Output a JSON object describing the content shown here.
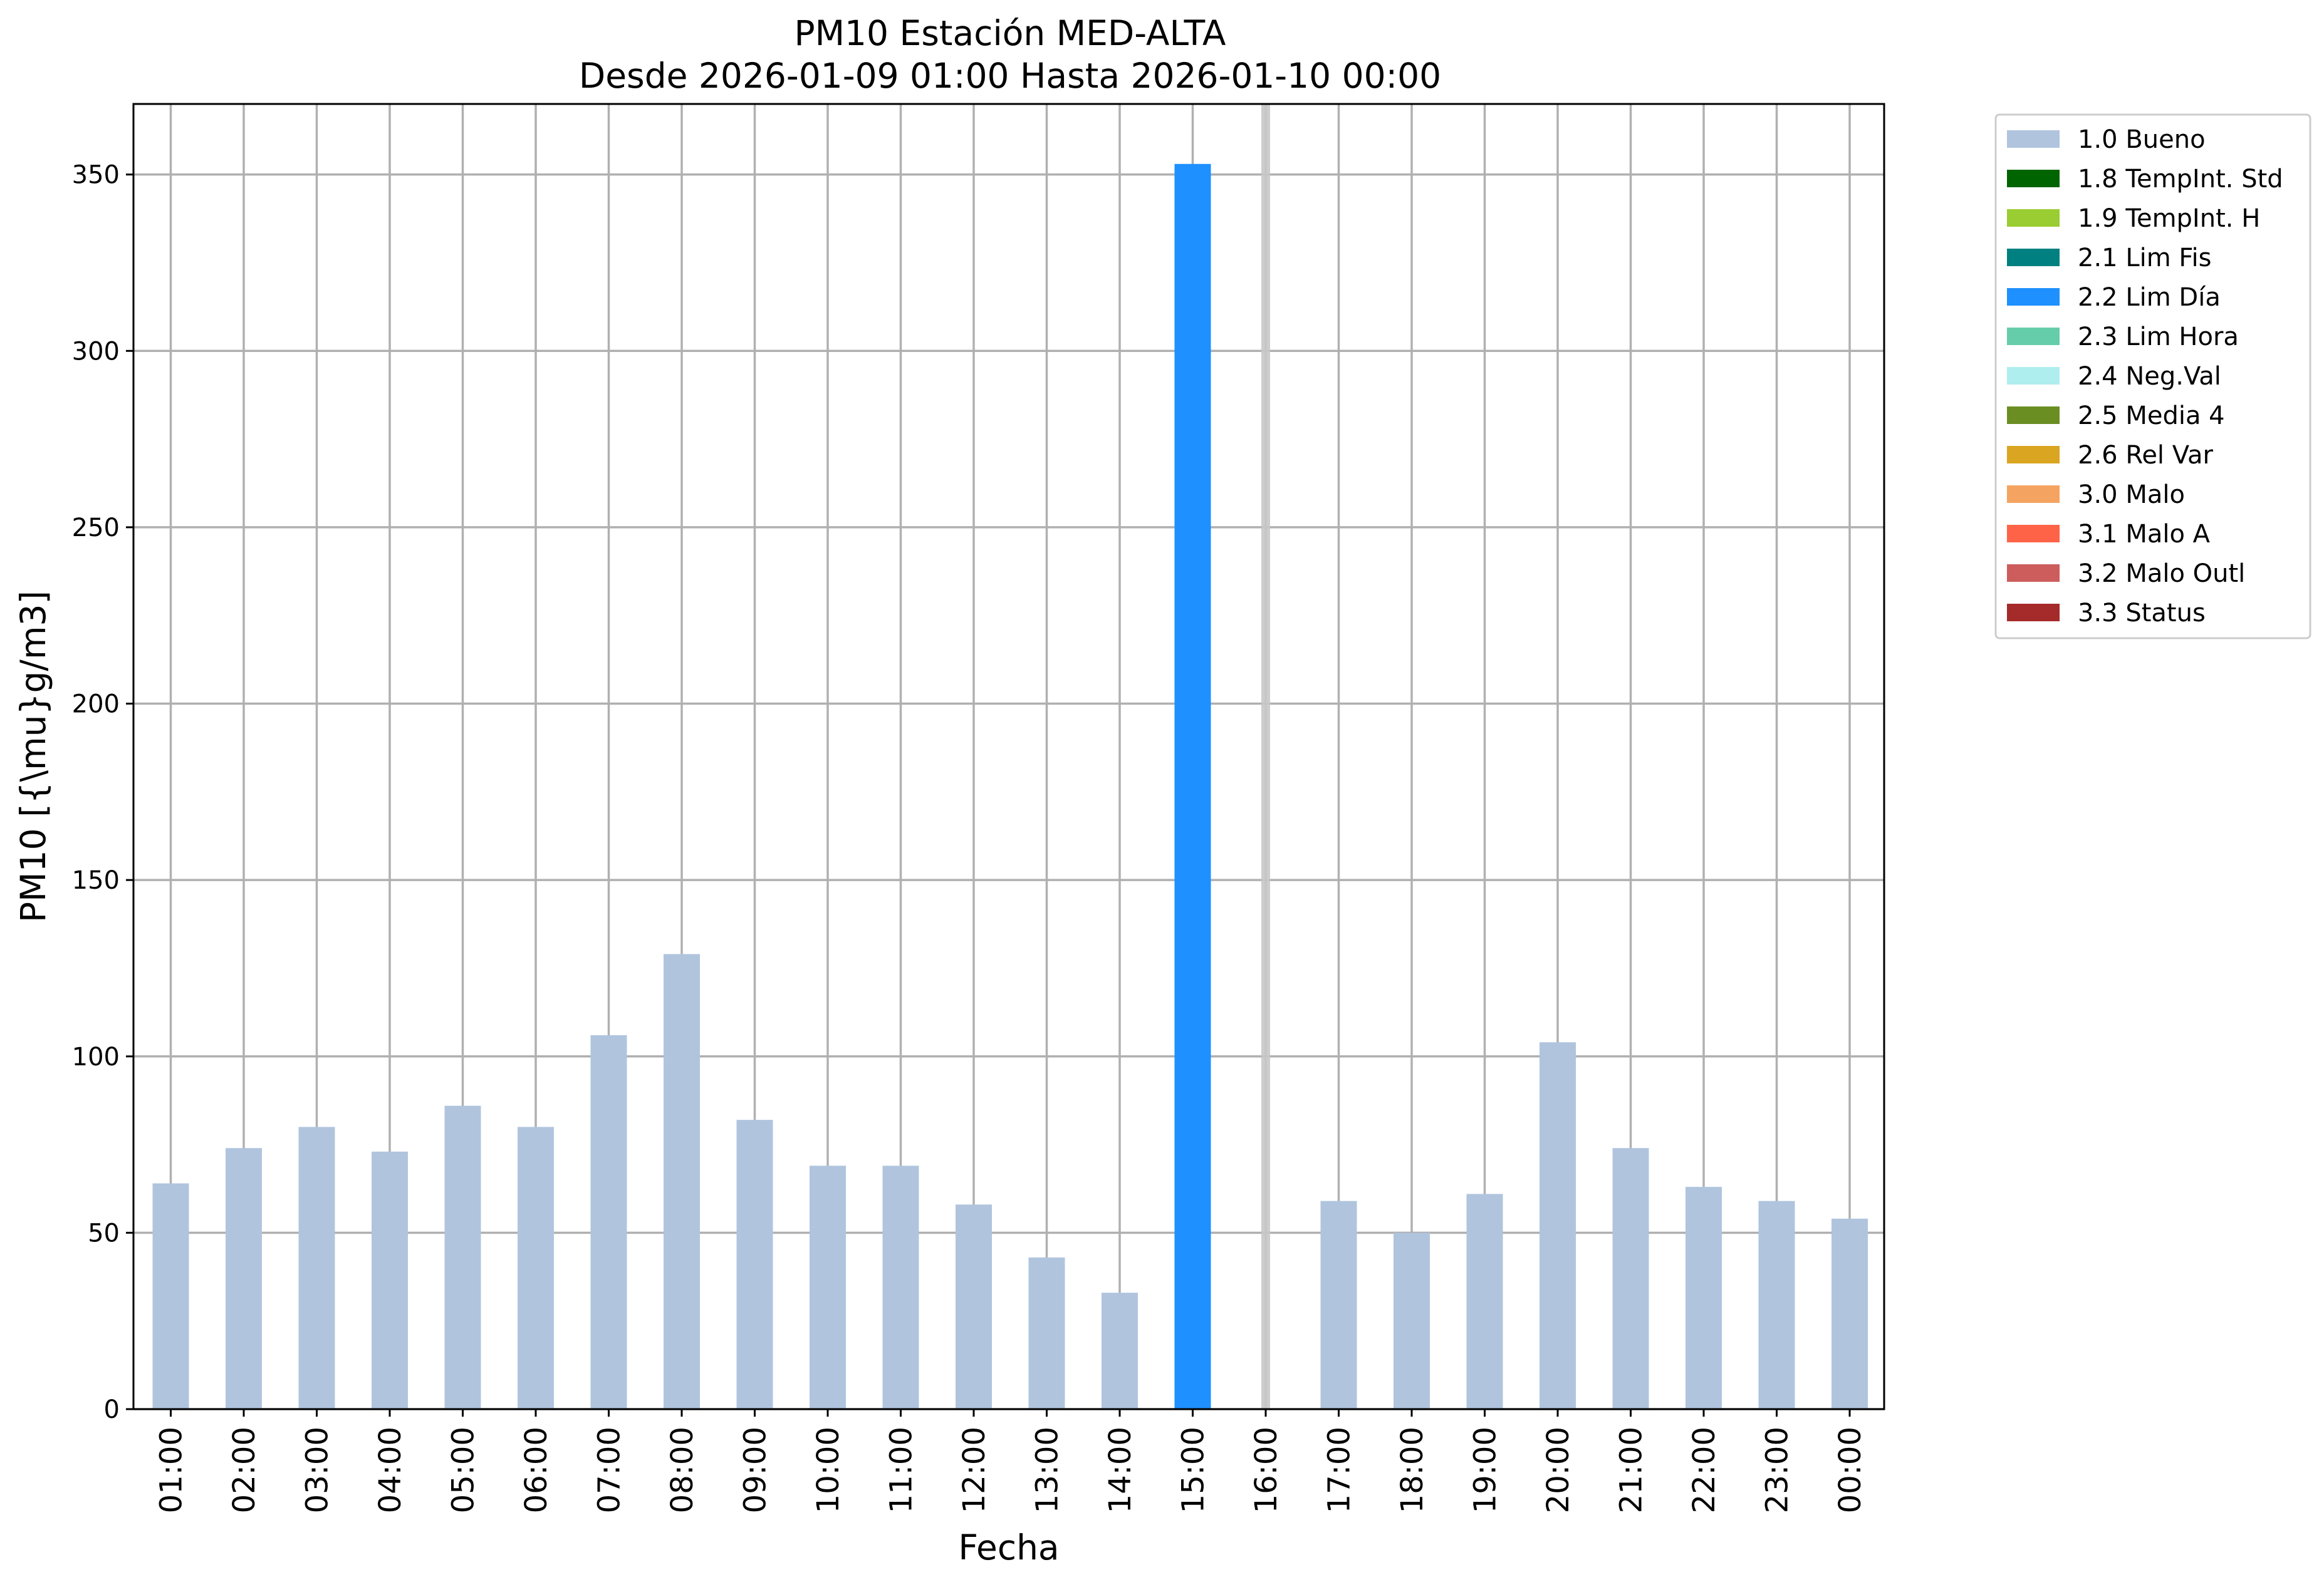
{
  "chart_data": {
    "type": "bar",
    "title": "PM10 Estación MED-ALTA",
    "subtitle": "Desde 2026-01-09 01:00 Hasta 2026-01-10 00:00",
    "xlabel": "Fecha",
    "ylabel": "PM10 [{\\mu}g/m3]",
    "ylim": [
      0,
      370
    ],
    "yticks": [
      0,
      50,
      100,
      150,
      200,
      250,
      300,
      350
    ],
    "grid": true,
    "legend_position": "outside-top-right",
    "categories": [
      "01:00",
      "02:00",
      "03:00",
      "04:00",
      "05:00",
      "06:00",
      "07:00",
      "08:00",
      "09:00",
      "10:00",
      "11:00",
      "12:00",
      "13:00",
      "14:00",
      "15:00",
      "16:00",
      "17:00",
      "18:00",
      "19:00",
      "20:00",
      "21:00",
      "22:00",
      "23:00",
      "00:00"
    ],
    "values": [
      64,
      74,
      80,
      73,
      86,
      80,
      106,
      129,
      82,
      69,
      69,
      58,
      43,
      33,
      353,
      null,
      59,
      50,
      61,
      104,
      74,
      63,
      59,
      54
    ],
    "bar_flags": [
      "1.0 Bueno",
      "1.0 Bueno",
      "1.0 Bueno",
      "1.0 Bueno",
      "1.0 Bueno",
      "1.0 Bueno",
      "1.0 Bueno",
      "1.0 Bueno",
      "1.0 Bueno",
      "1.0 Bueno",
      "1.0 Bueno",
      "1.0 Bueno",
      "1.0 Bueno",
      "1.0 Bueno",
      "2.2 Lim Día",
      null,
      "1.0 Bueno",
      "1.0 Bueno",
      "1.0 Bueno",
      "1.0 Bueno",
      "1.0 Bueno",
      "1.0 Bueno",
      "1.0 Bueno",
      "1.0 Bueno"
    ],
    "missing_marker_category": "16:00",
    "missing_marker_color": "#c8c8c8",
    "legend": [
      {
        "label": "1.0 Bueno",
        "color": "#b0c4de"
      },
      {
        "label": "1.8 TempInt. Std",
        "color": "#006400"
      },
      {
        "label": "1.9 TempInt. H",
        "color": "#9acd32"
      },
      {
        "label": "2.1 Lim Fis",
        "color": "#008080"
      },
      {
        "label": "2.2 Lim Día",
        "color": "#1e90ff"
      },
      {
        "label": "2.3 Lim Hora",
        "color": "#66cdaa"
      },
      {
        "label": "2.4 Neg.Val",
        "color": "#afeeee"
      },
      {
        "label": "2.5 Media 4",
        "color": "#6b8e23"
      },
      {
        "label": "2.6 Rel Var",
        "color": "#daa520"
      },
      {
        "label": "3.0 Malo",
        "color": "#f4a460"
      },
      {
        "label": "3.1 Malo A",
        "color": "#ff6347"
      },
      {
        "label": "3.2 Malo Outl",
        "color": "#cd5c5c"
      },
      {
        "label": "3.3 Status",
        "color": "#a52a2a"
      }
    ]
  }
}
